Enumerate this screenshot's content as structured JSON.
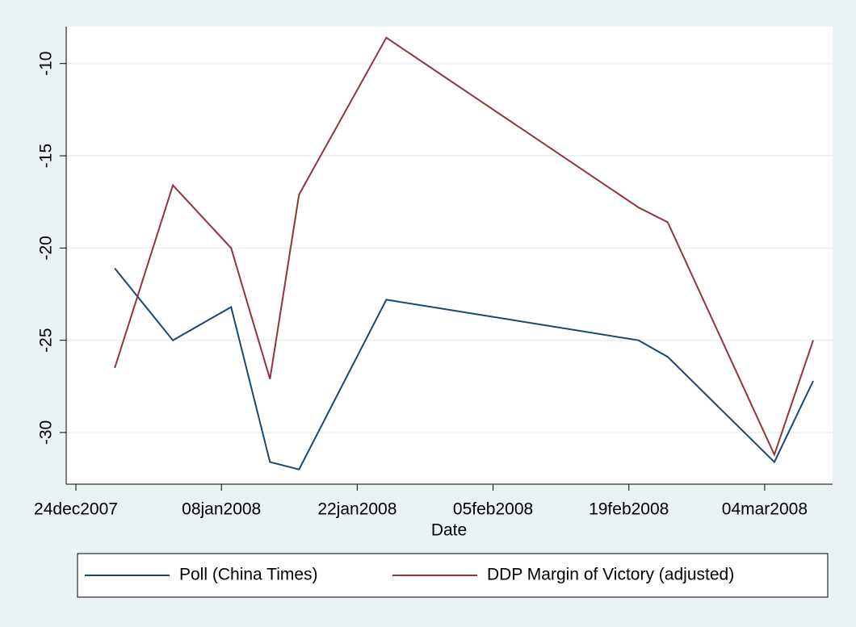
{
  "chart_data": {
    "type": "line",
    "x_label": "Date",
    "x": [
      "2007-12-28",
      "2008-01-03",
      "2008-01-09",
      "2008-01-13",
      "2008-01-16",
      "2008-01-25",
      "2008-02-20",
      "2008-02-23",
      "2008-03-05",
      "2008-03-09"
    ],
    "series": [
      {
        "name": "Poll (China Times)",
        "color": "#1a476f",
        "values": [
          -21.1,
          -25.0,
          -23.2,
          -31.6,
          -32.0,
          -22.8,
          -25.0,
          -25.9,
          -31.6,
          -27.2
        ]
      },
      {
        "name": "DDP Margin of Victory (adjusted)",
        "color": "#90353b",
        "values": [
          -26.5,
          -16.6,
          -20.0,
          -27.1,
          -17.1,
          -8.6,
          -17.8,
          -18.6,
          -31.2,
          -25.0
        ]
      }
    ],
    "xlim": [
      "2007-12-23",
      "2008-03-11"
    ],
    "xticks": [
      {
        "value": "2007-12-24",
        "label": "24dec2007"
      },
      {
        "value": "2008-01-08",
        "label": "08jan2008"
      },
      {
        "value": "2008-01-22",
        "label": "22jan2008"
      },
      {
        "value": "2008-02-05",
        "label": "05feb2008"
      },
      {
        "value": "2008-02-19",
        "label": "19feb2008"
      },
      {
        "value": "2008-03-04",
        "label": "04mar2008"
      }
    ],
    "ylim": [
      -32.8,
      -8
    ],
    "yticks": [
      -30,
      -25,
      -20,
      -15,
      -10
    ],
    "grid": true,
    "legend": "bottom"
  }
}
